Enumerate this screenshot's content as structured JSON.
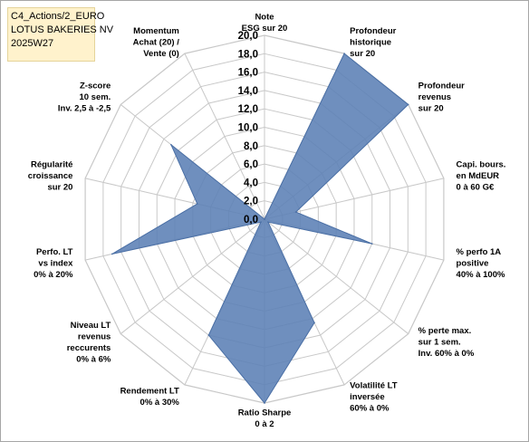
{
  "title_box": {
    "line1": "C4_Actions/2_EURO",
    "line2": "LOTUS BAKERIES NV",
    "line3": "2025W27"
  },
  "colors": {
    "fill": "#5b7fb5",
    "stroke": "#4a6fa5",
    "grid": "#c8c8c8",
    "title_bg": "#fff2cc"
  },
  "chart_data": {
    "type": "radar",
    "rmin": 0,
    "rmax": 20,
    "tick_step": 2,
    "tick_labels": [
      "0,0",
      "2,0",
      "4,0",
      "6,0",
      "8,0",
      "10,0",
      "12,0",
      "14,0",
      "16,0",
      "18,0",
      "20,0"
    ],
    "axes": [
      {
        "label": [
          "Note",
          "ESG sur 20"
        ]
      },
      {
        "label": [
          "Profondeur",
          "historique",
          "sur 20"
        ]
      },
      {
        "label": [
          "Profondeur",
          "revenus",
          "sur 20"
        ]
      },
      {
        "label": [
          "Capi. bours.",
          "en MdEUR",
          "0 à 60 G€"
        ]
      },
      {
        "label": [
          "% perfo 1A",
          "positive",
          "40% à 100%"
        ]
      },
      {
        "label": [
          "% perte max.",
          "sur 1 sem.",
          "Inv. 60% à 0%"
        ]
      },
      {
        "label": [
          "Volatilité LT",
          "inversée",
          "60% à 0%"
        ]
      },
      {
        "label": [
          "Ratio Sharpe",
          "0 à 2"
        ]
      },
      {
        "label": [
          "Rendement LT",
          "0% à 30%"
        ]
      },
      {
        "label": [
          "Niveau LT",
          "revenus",
          "reccurents",
          "0% à 6%"
        ]
      },
      {
        "label": [
          "Perfo. LT",
          "vs index",
          "0% à 20%"
        ]
      },
      {
        "label": [
          "Régularité",
          "croissance",
          "sur 20"
        ]
      },
      {
        "label": [
          "Z-score",
          "10 sem.",
          "Inv. 2,5 à -2,5"
        ]
      },
      {
        "label": [
          "Momentum",
          "Achat (20) /",
          "Vente (0)"
        ]
      }
    ],
    "series": [
      {
        "values": [
          0,
          20,
          20,
          3.5,
          12,
          0.5,
          12.5,
          20,
          14,
          0.5,
          17,
          7.5,
          13,
          0
        ]
      }
    ]
  }
}
